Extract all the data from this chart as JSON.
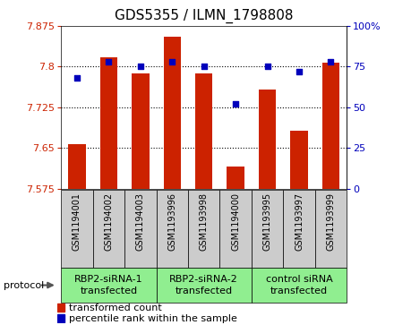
{
  "title": "GDS5355 / ILMN_1798808",
  "samples": [
    "GSM1194001",
    "GSM1194002",
    "GSM1194003",
    "GSM1193996",
    "GSM1193998",
    "GSM1194000",
    "GSM1193995",
    "GSM1193997",
    "GSM1193999"
  ],
  "bar_values": [
    7.657,
    7.818,
    7.787,
    7.855,
    7.787,
    7.615,
    7.757,
    7.682,
    7.808
  ],
  "dot_values": [
    68,
    78,
    75,
    78,
    75,
    52,
    75,
    72,
    78
  ],
  "groups": [
    {
      "label": "RBP2-siRNA-1\ntransfected",
      "start": 0,
      "end": 3
    },
    {
      "label": "RBP2-siRNA-2\ntransfected",
      "start": 3,
      "end": 6
    },
    {
      "label": "control siRNA\ntransfected",
      "start": 6,
      "end": 9
    }
  ],
  "ylim_left": [
    7.575,
    7.875
  ],
  "ylim_right": [
    0,
    100
  ],
  "yticks_left": [
    7.575,
    7.65,
    7.725,
    7.8,
    7.875
  ],
  "ytick_labels_left": [
    "7.575",
    "7.65",
    "7.725",
    "7.8",
    "7.875"
  ],
  "yticks_right": [
    0,
    25,
    50,
    75,
    100
  ],
  "ytick_labels_right": [
    "0",
    "25",
    "50",
    "75",
    "100%"
  ],
  "bar_color": "#CC2200",
  "dot_color": "#0000BB",
  "bar_bottom": 7.575,
  "bar_width": 0.55,
  "group_color": "#90EE90",
  "sample_bg_color": "#CCCCCC",
  "protocol_label": "protocol",
  "legend_bar_label": "transformed count",
  "legend_dot_label": "percentile rank within the sample",
  "title_fontsize": 11,
  "tick_fontsize": 8,
  "sample_fontsize": 7,
  "group_fontsize": 8,
  "legend_fontsize": 8
}
